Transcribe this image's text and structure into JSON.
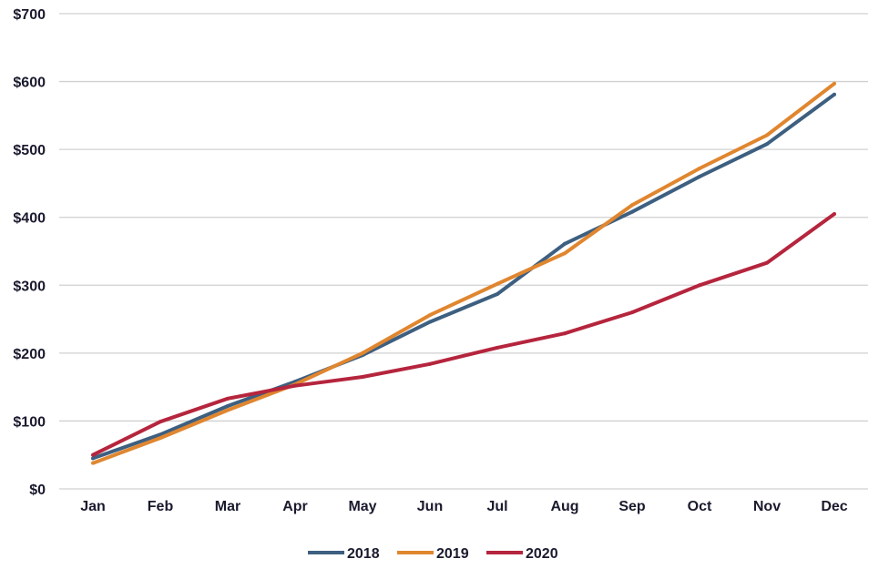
{
  "chart_data": {
    "type": "line",
    "title": "",
    "xlabel": "",
    "ylabel": "",
    "categories": [
      "Jan",
      "Feb",
      "Mar",
      "Apr",
      "May",
      "Jun",
      "Jul",
      "Aug",
      "Sep",
      "Oct",
      "Nov",
      "Dec"
    ],
    "y_ticks": [
      "$0",
      "$100",
      "$200",
      "$300",
      "$400",
      "$500",
      "$600",
      "$700"
    ],
    "ylim": [
      0,
      700
    ],
    "grid": true,
    "legend_position": "bottom",
    "series": [
      {
        "name": "2018",
        "color": "#3d5f80",
        "values": [
          45,
          80,
          122,
          158,
          197,
          246,
          287,
          361,
          408,
          460,
          508,
          581
        ]
      },
      {
        "name": "2019",
        "color": "#e0862f",
        "values": [
          38,
          75,
          116,
          154,
          200,
          256,
          302,
          347,
          418,
          472,
          521,
          597
        ]
      },
      {
        "name": "2020",
        "color": "#b5253d",
        "values": [
          50,
          99,
          133,
          152,
          165,
          184,
          208,
          229,
          260,
          300,
          333,
          405
        ]
      }
    ]
  }
}
